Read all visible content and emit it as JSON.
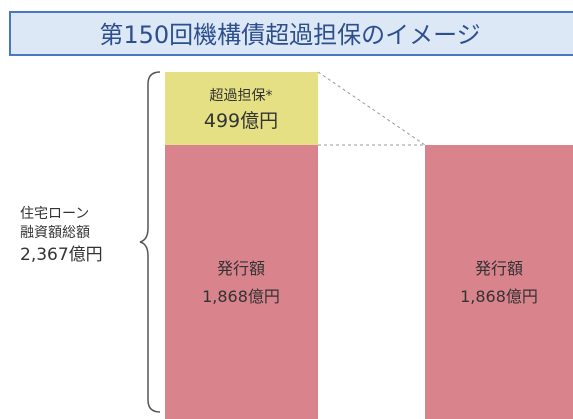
{
  "title": "第150回機構債超過担保のイメージ",
  "total": {
    "lines": [
      "住宅ローン",
      "融資額総額"
    ],
    "amount": "2,367億円"
  },
  "overcollateral": {
    "label": "超過担保*",
    "amount": "499億円"
  },
  "left_issue": {
    "label": "発行額",
    "amount": "1,868億円"
  },
  "right_issue": {
    "label": "発行額",
    "amount": "1,868億円"
  }
}
